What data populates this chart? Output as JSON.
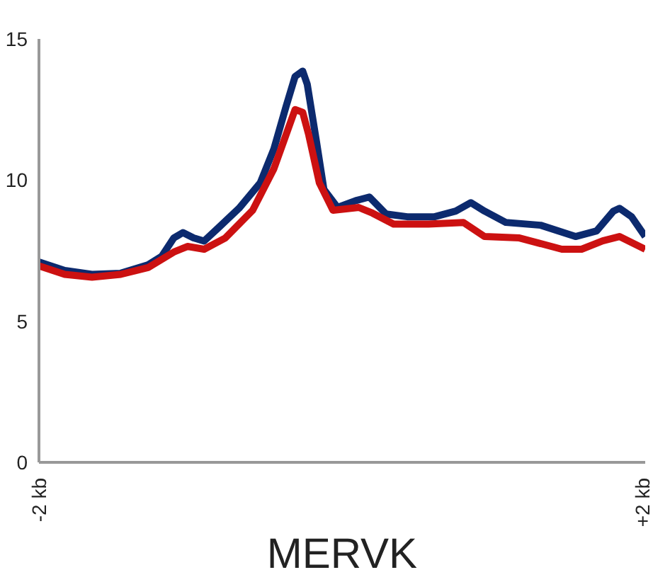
{
  "chart_data": {
    "type": "line",
    "xlabel": "MERVK",
    "xlim": [
      -2,
      2
    ],
    "xticks": [
      {
        "value": -2,
        "label": "-2 kb"
      },
      {
        "value": 2,
        "label": "+2 kb"
      }
    ],
    "ylim": [
      0,
      15
    ],
    "yticks": [
      0,
      5,
      10,
      15
    ],
    "grid": false,
    "line_style": "solid",
    "marker": "none",
    "series": [
      {
        "color": "#0c2a6e",
        "x": [
          -2,
          -1.83,
          -1.65,
          -1.46,
          -1.28,
          -1.19,
          -1.11,
          -1.05,
          -0.98,
          -0.91,
          -0.82,
          -0.68,
          -0.54,
          -0.45,
          -0.37,
          -0.31,
          -0.26,
          -0.23,
          -0.17,
          -0.12,
          -0.03,
          0.09,
          0.18,
          0.29,
          0.43,
          0.61,
          0.75,
          0.85,
          0.94,
          1.08,
          1.31,
          1.54,
          1.68,
          1.79,
          1.83,
          1.91,
          2.0
        ],
        "values": [
          7.1,
          6.8,
          6.66,
          6.7,
          7.0,
          7.3,
          7.95,
          8.14,
          7.95,
          7.84,
          8.29,
          9.0,
          9.9,
          11.1,
          12.6,
          13.67,
          13.86,
          13.4,
          11.4,
          9.67,
          9.03,
          9.27,
          9.4,
          8.8,
          8.7,
          8.7,
          8.9,
          9.2,
          8.9,
          8.5,
          8.4,
          8.0,
          8.2,
          8.9,
          9.0,
          8.7,
          8.0
        ]
      },
      {
        "color": "#cc1111",
        "x": [
          -2,
          -1.83,
          -1.65,
          -1.46,
          -1.28,
          -1.11,
          -1.02,
          -0.91,
          -0.77,
          -0.59,
          -0.45,
          -0.37,
          -0.31,
          -0.26,
          -0.22,
          -0.15,
          -0.06,
          0.11,
          0.2,
          0.34,
          0.57,
          0.8,
          0.94,
          1.17,
          1.45,
          1.58,
          1.72,
          1.83,
          2.0
        ],
        "values": [
          6.96,
          6.66,
          6.56,
          6.66,
          6.9,
          7.45,
          7.65,
          7.55,
          7.95,
          8.93,
          10.4,
          11.6,
          12.5,
          12.4,
          11.6,
          9.9,
          8.93,
          9.03,
          8.83,
          8.44,
          8.44,
          8.5,
          8.0,
          7.95,
          7.55,
          7.55,
          7.85,
          8.0,
          7.55
        ]
      }
    ]
  }
}
